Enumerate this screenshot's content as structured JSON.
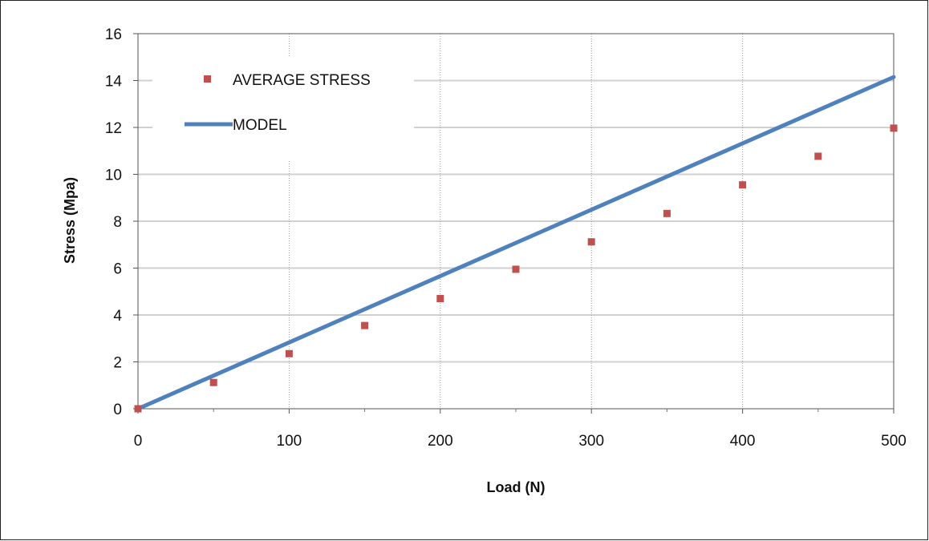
{
  "chart_data": {
    "type": "scatter",
    "xlabel": "Load (N)",
    "ylabel": "Stress (Mpa)",
    "xlim": [
      0,
      500
    ],
    "ylim": [
      0,
      16
    ],
    "x_ticks": [
      0,
      100,
      200,
      300,
      400,
      500
    ],
    "y_ticks": [
      0,
      2,
      4,
      6,
      8,
      10,
      12,
      14,
      16
    ],
    "grid": {
      "horizontal": true,
      "vertical": true,
      "vertical_style": "dotted"
    },
    "legend_placement": "top-left",
    "series": [
      {
        "name": "AVERAGE STRESS",
        "mark": "square",
        "color": "#c0504d",
        "points": [
          [
            0,
            0
          ],
          [
            50,
            1.12
          ],
          [
            100,
            2.35
          ],
          [
            150,
            3.55
          ],
          [
            200,
            4.7
          ],
          [
            250,
            5.95
          ],
          [
            300,
            7.12
          ],
          [
            350,
            8.33
          ],
          [
            400,
            9.55
          ],
          [
            450,
            10.77
          ],
          [
            500,
            11.97
          ]
        ]
      },
      {
        "name": "MODEL",
        "mark": "line",
        "color": "#4f81bd",
        "points": [
          [
            0,
            0
          ],
          [
            500,
            14.15
          ]
        ]
      }
    ]
  }
}
